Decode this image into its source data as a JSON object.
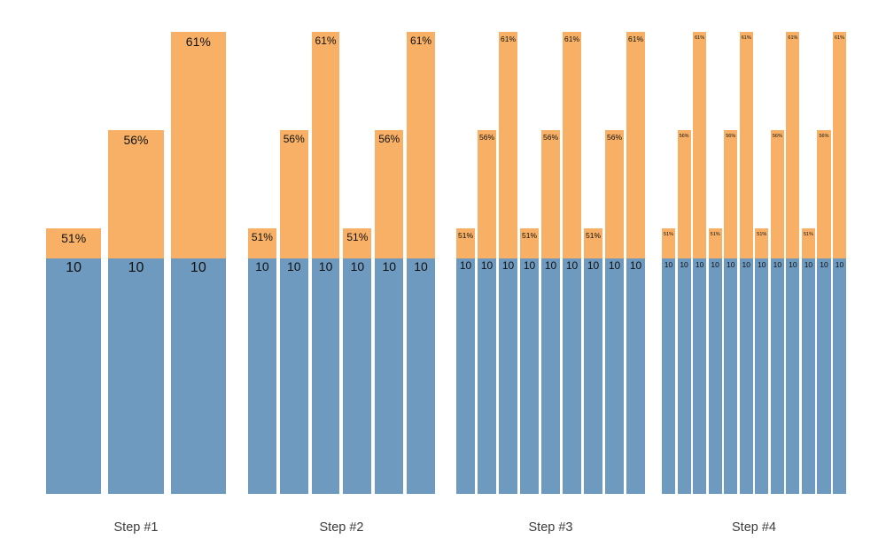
{
  "canvas": {
    "background": "#ffffff"
  },
  "colors": {
    "base_segment_blue": "#6e9abf",
    "top_segment_orange": "#f7b065",
    "bar_label": "#111111",
    "group_label": "#3c3c3c"
  },
  "chart_data": {
    "type": "bar",
    "subtype": "stacked-grouped",
    "title": "",
    "xlabel": "",
    "ylabel": "",
    "axes_visible": false,
    "grid": "off",
    "legend": "none",
    "base_value": 10,
    "percent_levels": [
      51,
      56,
      61
    ],
    "note": "Each group repeats the 51%/56%/61% triplet; every bar has a base segment of 10",
    "groups": [
      {
        "label": "Step #1",
        "bars": [
          {
            "pct": "51%",
            "pct_value": 51,
            "base": "10",
            "base_value": 10
          },
          {
            "pct": "56%",
            "pct_value": 56,
            "base": "10",
            "base_value": 10
          },
          {
            "pct": "61%",
            "pct_value": 61,
            "base": "10",
            "base_value": 10
          }
        ]
      },
      {
        "label": "Step #2",
        "bars": [
          {
            "pct": "51%",
            "pct_value": 51,
            "base": "10",
            "base_value": 10
          },
          {
            "pct": "56%",
            "pct_value": 56,
            "base": "10",
            "base_value": 10
          },
          {
            "pct": "61%",
            "pct_value": 61,
            "base": "10",
            "base_value": 10
          },
          {
            "pct": "51%",
            "pct_value": 51,
            "base": "10",
            "base_value": 10
          },
          {
            "pct": "56%",
            "pct_value": 56,
            "base": "10",
            "base_value": 10
          },
          {
            "pct": "61%",
            "pct_value": 61,
            "base": "10",
            "base_value": 10
          }
        ]
      },
      {
        "label": "Step #3",
        "bars": [
          {
            "pct": "51%",
            "pct_value": 51,
            "base": "10",
            "base_value": 10
          },
          {
            "pct": "56%",
            "pct_value": 56,
            "base": "10",
            "base_value": 10
          },
          {
            "pct": "61%",
            "pct_value": 61,
            "base": "10",
            "base_value": 10
          },
          {
            "pct": "51%",
            "pct_value": 51,
            "base": "10",
            "base_value": 10
          },
          {
            "pct": "56%",
            "pct_value": 56,
            "base": "10",
            "base_value": 10
          },
          {
            "pct": "61%",
            "pct_value": 61,
            "base": "10",
            "base_value": 10
          },
          {
            "pct": "51%",
            "pct_value": 51,
            "base": "10",
            "base_value": 10
          },
          {
            "pct": "56%",
            "pct_value": 56,
            "base": "10",
            "base_value": 10
          },
          {
            "pct": "61%",
            "pct_value": 61,
            "base": "10",
            "base_value": 10
          }
        ]
      },
      {
        "label": "Step #4",
        "bars": [
          {
            "pct": "51%",
            "pct_value": 51,
            "base": "10",
            "base_value": 10
          },
          {
            "pct": "56%",
            "pct_value": 56,
            "base": "10",
            "base_value": 10
          },
          {
            "pct": "61%",
            "pct_value": 61,
            "base": "10",
            "base_value": 10
          },
          {
            "pct": "51%",
            "pct_value": 51,
            "base": "10",
            "base_value": 10
          },
          {
            "pct": "56%",
            "pct_value": 56,
            "base": "10",
            "base_value": 10
          },
          {
            "pct": "61%",
            "pct_value": 61,
            "base": "10",
            "base_value": 10
          },
          {
            "pct": "51%",
            "pct_value": 51,
            "base": "10",
            "base_value": 10
          },
          {
            "pct": "56%",
            "pct_value": 56,
            "base": "10",
            "base_value": 10
          },
          {
            "pct": "61%",
            "pct_value": 61,
            "base": "10",
            "base_value": 10
          },
          {
            "pct": "51%",
            "pct_value": 51,
            "base": "10",
            "base_value": 10
          },
          {
            "pct": "56%",
            "pct_value": 56,
            "base": "10",
            "base_value": 10
          },
          {
            "pct": "61%",
            "pct_value": 61,
            "base": "10",
            "base_value": 10
          }
        ]
      }
    ]
  }
}
